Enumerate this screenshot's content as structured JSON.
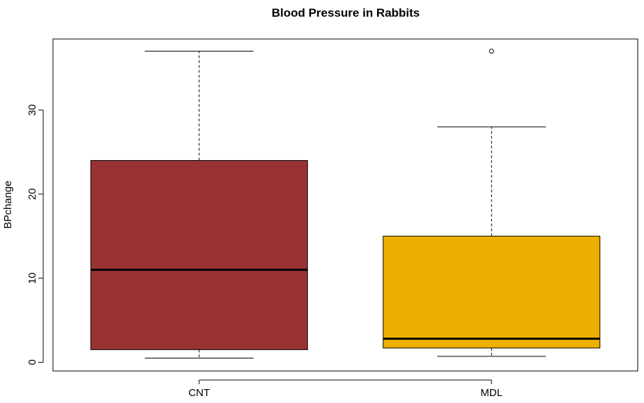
{
  "chart_data": {
    "type": "boxplot",
    "title": "Blood Pressure in Rabbits",
    "xlabel": "",
    "ylabel": "BPchange",
    "ylim": [
      -1,
      38
    ],
    "yticks": [
      0,
      10,
      20,
      30
    ],
    "grid": false,
    "categories": [
      "CNT",
      "MDL"
    ],
    "boxes": [
      {
        "category": "CNT",
        "whisker_low": 0.5,
        "q1": 1.5,
        "median": 11,
        "q3": 24,
        "whisker_high": 37,
        "outliers": [],
        "color": "#993333"
      },
      {
        "category": "MDL",
        "whisker_low": 0.7,
        "q1": 1.7,
        "median": 2.8,
        "q3": 15,
        "whisker_high": 28,
        "outliers": [
          37
        ],
        "color": "#EEAF00"
      }
    ]
  }
}
